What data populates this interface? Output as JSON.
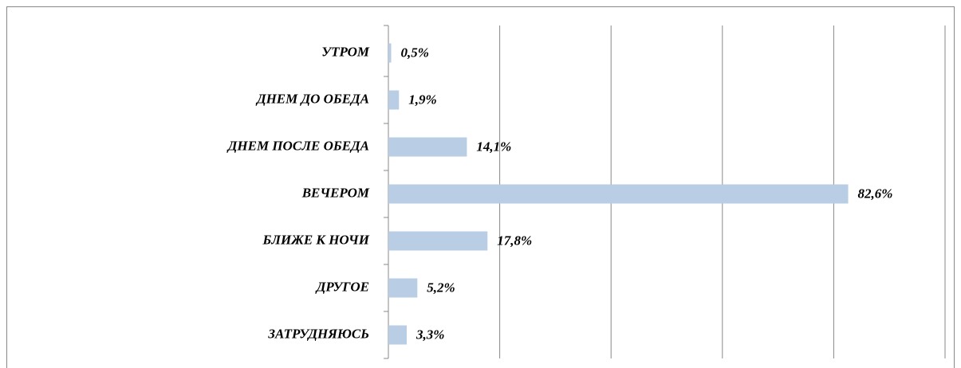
{
  "chart_data": {
    "type": "bar",
    "orientation": "horizontal",
    "categories": [
      "УТРОМ",
      "ДНЕМ ДО ОБЕДА",
      "ДНЕМ ПОСЛЕ ОБЕДА",
      "ВЕЧЕРОМ",
      "БЛИЖЕ К НОЧИ",
      "ДРУГОЕ",
      "ЗАТРУДНЯЮСЬ"
    ],
    "values": [
      0.5,
      1.9,
      14.1,
      82.6,
      17.8,
      5.2,
      3.3
    ],
    "value_labels": [
      "0,5%",
      "1,9%",
      "14,1%",
      "82,6%",
      "17,8%",
      "5,2%",
      "3,3%"
    ],
    "color": "#b9cde5",
    "xlim": [
      0,
      100
    ],
    "xticks": [
      0,
      20,
      40,
      60,
      80,
      100
    ],
    "grid": true
  }
}
